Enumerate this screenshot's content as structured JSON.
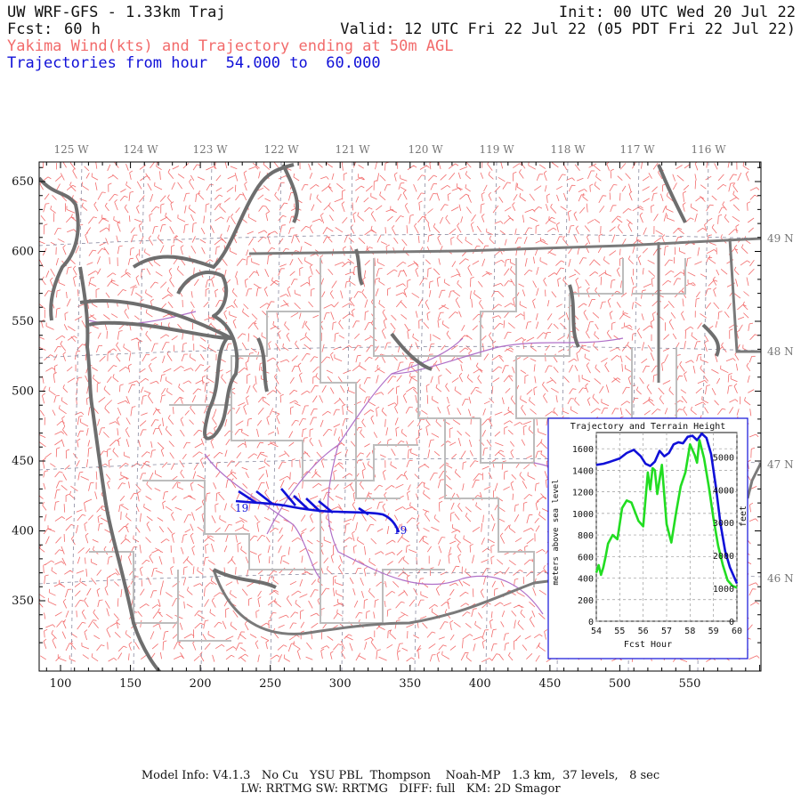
{
  "header": {
    "title": "UW WRF-GFS - 1.33km Traj",
    "init": "Init: 00 UTC Wed 20 Jul 22",
    "fcst_label": "Fcst:",
    "fcst_value": "60 h",
    "valid": "Valid: 12 UTC Fri 22 Jul 22 (05 PDT Fri 22 Jul 22)",
    "subtitle_red": "Yakima Wind(kts) and Trajectory ending at 50m AGL",
    "subtitle_blue": "Trajectories from hour  54.000 to  60.000"
  },
  "map": {
    "top_labels": [
      "125 W",
      "124 W",
      "123 W",
      "122 W",
      "121 W",
      "120 W",
      "119 W",
      "118 W",
      "117 W",
      "116 W"
    ],
    "right_labels": [
      "49 N",
      "48 N",
      "47 N",
      "46 N"
    ],
    "x_ticks": [
      "100",
      "150",
      "200",
      "250",
      "300",
      "350",
      "400",
      "450",
      "500",
      "550"
    ],
    "y_ticks": [
      "650",
      "600",
      "550",
      "500",
      "450",
      "400",
      "350"
    ],
    "trajectory_labels": [
      "19",
      "19"
    ],
    "colors": {
      "wind_barbs": "#f26b6b",
      "trajectory": "#1010d8",
      "coastline": "#6e6e6e",
      "county_lines": "#bdbdbd",
      "rivers": "#b070c8"
    }
  },
  "inset": {
    "title": "Trajectory and Terrain Height",
    "xlabel": "Fcst Hour",
    "ylabel_left": "meters above sea level",
    "ylabel_right": "feet",
    "x_ticks": [
      "54",
      "55",
      "56",
      "57",
      "58",
      "59",
      "60"
    ],
    "y_left_ticks": [
      "0",
      "200",
      "400",
      "600",
      "800",
      "1000",
      "1200",
      "1400",
      "1600"
    ],
    "y_right_ticks": [
      "0",
      "1000",
      "2000",
      "3000",
      "4000",
      "5000"
    ]
  },
  "chart_data": {
    "type": "line",
    "title": "Trajectory and Terrain Height",
    "xlabel": "Fcst Hour",
    "ylabel": "meters above sea level",
    "xlim": [
      54,
      60
    ],
    "ylim": [
      0,
      1750
    ],
    "series": [
      {
        "color": "#1010d8",
        "x": [
          54.0,
          54.3,
          54.6,
          55.0,
          55.3,
          55.6,
          55.9,
          56.1,
          56.3,
          56.5,
          56.7,
          56.9,
          57.1,
          57.3,
          57.5,
          57.7,
          57.9,
          58.1,
          58.3,
          58.5,
          58.7,
          58.9,
          59.1,
          59.3,
          59.5,
          59.7,
          60.0
        ],
        "y": [
          1450,
          1460,
          1480,
          1510,
          1560,
          1590,
          1530,
          1460,
          1440,
          1480,
          1580,
          1530,
          1560,
          1640,
          1660,
          1650,
          1710,
          1720,
          1680,
          1740,
          1700,
          1550,
          1250,
          900,
          650,
          500,
          350
        ]
      },
      {
        "color": "#22dd22",
        "x": [
          54.0,
          54.1,
          54.2,
          54.3,
          54.4,
          54.5,
          54.7,
          54.9,
          55.1,
          55.3,
          55.5,
          55.8,
          56.0,
          56.2,
          56.3,
          56.4,
          56.5,
          56.6,
          56.8,
          57.0,
          57.2,
          57.4,
          57.6,
          57.8,
          58.0,
          58.2,
          58.3,
          58.4,
          58.6,
          58.8,
          59.0,
          59.2,
          59.4,
          59.6,
          59.8,
          60.0
        ],
        "y": [
          450,
          520,
          430,
          500,
          600,
          720,
          800,
          760,
          1050,
          1120,
          1100,
          930,
          880,
          1380,
          1220,
          1420,
          1400,
          1180,
          1450,
          900,
          730,
          1000,
          1250,
          1380,
          1640,
          1540,
          1470,
          1680,
          1510,
          1250,
          950,
          700,
          520,
          380,
          330,
          310
        ]
      }
    ]
  },
  "footer": {
    "line1": "Model Info: V4.1.3   No Cu   YSU PBL  Thompson    Noah-MP   1.3 km,  37 levels,   8 sec",
    "line2": "LW: RRTMG SW: RRTMG   DIFF: full   KM: 2D Smagor"
  }
}
